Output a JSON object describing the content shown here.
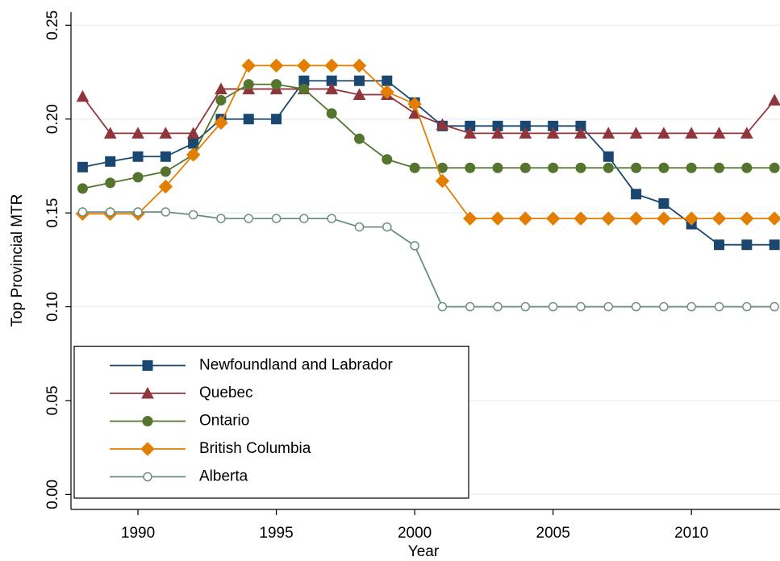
{
  "chart_data": {
    "type": "line",
    "x_label": "Year",
    "y_label": "Top Provincial MTR",
    "x": [
      1988,
      1989,
      1990,
      1991,
      1992,
      1993,
      1994,
      1995,
      1996,
      1997,
      1998,
      1999,
      2000,
      2001,
      2002,
      2003,
      2004,
      2005,
      2006,
      2007,
      2008,
      2009,
      2010,
      2011,
      2012,
      2013
    ],
    "xlim": [
      1987.58,
      2013.2
    ],
    "xticks": [
      1990,
      1995,
      2000,
      2005,
      2010
    ],
    "ylim": [
      -0.008,
      0.257
    ],
    "yticks": [
      {
        "value": 0,
        "label": "0.00"
      },
      {
        "value": 0.05,
        "label": "0.05"
      },
      {
        "value": 0.1,
        "label": "0.10"
      },
      {
        "value": 0.15,
        "label": "0.15"
      },
      {
        "value": 0.2,
        "label": "0.20"
      },
      {
        "value": 0.25,
        "label": "0.25"
      }
    ],
    "grid": true,
    "legend": "lower left",
    "series": [
      {
        "name": "Newfoundland and Labrador",
        "color": "#1a476f",
        "marker": "square",
        "values": [
          0.1744,
          0.1774,
          0.18,
          0.18,
          0.187,
          0.2,
          0.2,
          0.2,
          0.2204,
          0.2204,
          0.2204,
          0.2204,
          0.2088,
          0.1963,
          0.1963,
          0.1963,
          0.1963,
          0.1963,
          0.1963,
          0.18,
          0.16,
          0.155,
          0.144,
          0.133,
          0.133,
          0.133
        ]
      },
      {
        "name": "Quebec",
        "color": "#90353b",
        "marker": "triangle",
        "values": [
          0.212,
          0.1924,
          0.1924,
          0.1924,
          0.1924,
          0.216,
          0.216,
          0.216,
          0.216,
          0.216,
          0.213,
          0.213,
          0.203,
          0.197,
          0.1924,
          0.1924,
          0.1924,
          0.1924,
          0.1924,
          0.1924,
          0.1924,
          0.1924,
          0.1924,
          0.1924,
          0.1924,
          0.21
        ]
      },
      {
        "name": "Ontario",
        "color": "#55752f",
        "marker": "circle",
        "values": [
          0.163,
          0.166,
          0.169,
          0.172,
          0.181,
          0.21,
          0.2185,
          0.2185,
          0.216,
          0.203,
          0.1895,
          0.1785,
          0.174,
          0.174,
          0.174,
          0.174,
          0.174,
          0.174,
          0.174,
          0.174,
          0.174,
          0.174,
          0.174,
          0.174,
          0.174,
          0.174
        ]
      },
      {
        "name": "British Columbia",
        "color": "#e37e00",
        "marker": "diamond",
        "values": [
          0.1495,
          0.1495,
          0.1495,
          0.164,
          0.181,
          0.198,
          0.2285,
          0.2285,
          0.2285,
          0.2285,
          0.2285,
          0.2145,
          0.208,
          0.167,
          0.147,
          0.147,
          0.147,
          0.147,
          0.147,
          0.147,
          0.147,
          0.147,
          0.147,
          0.147,
          0.147,
          0.147
        ]
      },
      {
        "name": "Alberta",
        "color": "#6e8e84",
        "marker": "hollow-circle",
        "values": [
          0.1505,
          0.1505,
          0.1505,
          0.1505,
          0.149,
          0.147,
          0.147,
          0.147,
          0.147,
          0.147,
          0.1425,
          0.1425,
          0.1325,
          0.1,
          0.1,
          0.1,
          0.1,
          0.1,
          0.1,
          0.1,
          0.1,
          0.1,
          0.1,
          0.1,
          0.1,
          0.1
        ]
      }
    ]
  }
}
